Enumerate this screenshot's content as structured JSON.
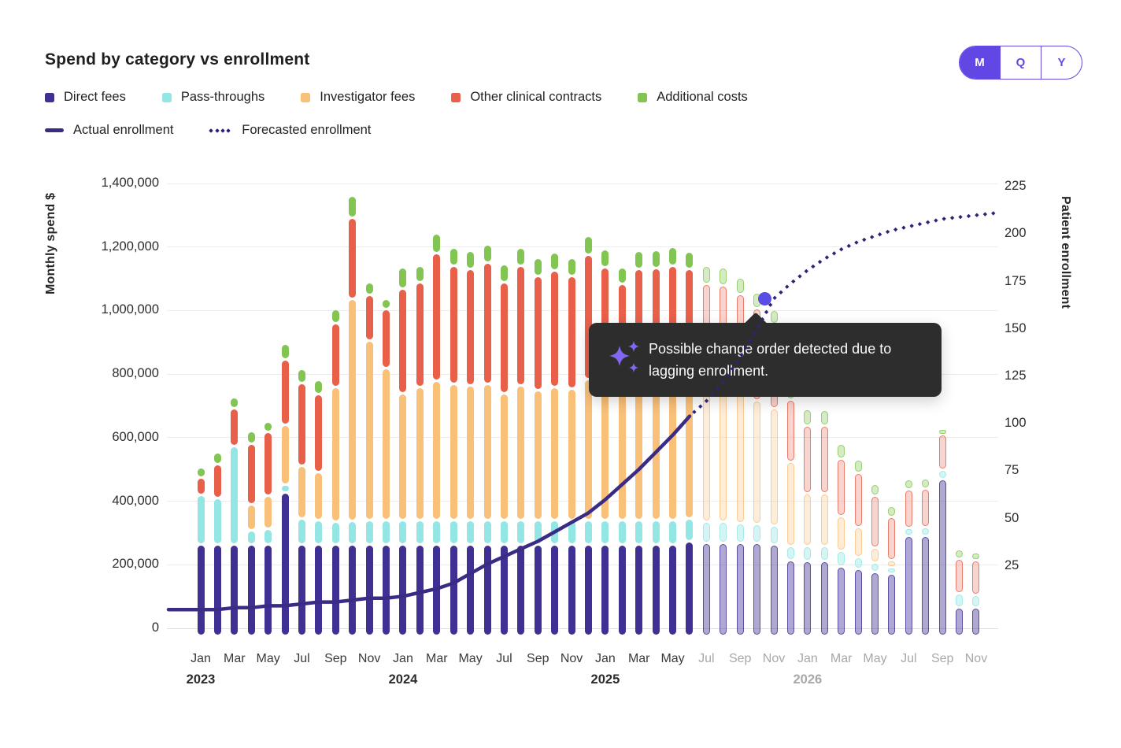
{
  "header": {
    "title": "Spend by category vs enrollment",
    "toggle": {
      "options": [
        "M",
        "Q",
        "Y"
      ],
      "selected": "M",
      "accent": "#6247e5"
    }
  },
  "legend": {
    "categories": [
      {
        "label": "Direct fees",
        "color": "#3f3093"
      },
      {
        "label": "Pass-throughs",
        "color": "#94e6e4"
      },
      {
        "label": "Investigator fees",
        "color": "#f9c07a"
      },
      {
        "label": "Other clinical contracts",
        "color": "#e8604a"
      },
      {
        "label": "Additional costs",
        "color": "#83c553"
      }
    ],
    "lines": [
      {
        "label": "Actual enrollment",
        "style": "solid",
        "color": "#3a2c85"
      },
      {
        "label": "Forecasted enrollment",
        "style": "dotted",
        "color": "#2e2475"
      }
    ]
  },
  "axes": {
    "left": {
      "title": "Monthly spend $",
      "tick_values": [
        1400000,
        1200000,
        1000000,
        800000,
        600000,
        400000,
        200000,
        0
      ]
    },
    "right": {
      "title": "Patient enrollment",
      "tick_values": [
        225,
        200,
        175,
        150,
        125,
        100,
        75,
        50,
        25
      ]
    },
    "x": {
      "year_labels": [
        "2023",
        "2024",
        "2025",
        "2026"
      ]
    }
  },
  "tooltip": {
    "icon": "sparkles-icon",
    "text": "Possible change order detected due to lagging enrollment.",
    "bg": "#2d2d2d",
    "icon_color": "#8268f0"
  },
  "chart_data": {
    "type": "combo_stacked_bar_line",
    "title": "Spend by category vs enrollment",
    "x_months": [
      "Jan 2023",
      "Feb 2023",
      "Mar 2023",
      "Apr 2023",
      "May 2023",
      "Jun 2023",
      "Jul 2023",
      "Aug 2023",
      "Sep 2023",
      "Oct 2023",
      "Nov 2023",
      "Dec 2023",
      "Jan 2024",
      "Feb 2024",
      "Mar 2024",
      "Apr 2024",
      "May 2024",
      "Jun 2024",
      "Jul 2024",
      "Aug 2024",
      "Sep 2024",
      "Oct 2024",
      "Nov 2024",
      "Dec 2024",
      "Jan 2025",
      "Feb 2025",
      "Mar 2025",
      "Apr 2025",
      "May 2025",
      "Jun 2025",
      "Jul 2025",
      "Aug 2025",
      "Sep 2025",
      "Oct 2025",
      "Nov 2025",
      "Dec 2025",
      "Jan 2026",
      "Feb 2026",
      "Mar 2026",
      "Apr 2026",
      "May 2026",
      "Jun 2026",
      "Jul 2026",
      "Aug 2026",
      "Sep 2026",
      "Oct 2026",
      "Nov 2026"
    ],
    "forecast_start_month": "Jul 2025",
    "bar_unit": "USD",
    "y_left": {
      "label": "Monthly spend $",
      "min": 0,
      "max": 1400000,
      "tick_step": 200000,
      "grid": true
    },
    "y_right": {
      "label": "Patient enrollment",
      "min": 0,
      "max": 225,
      "tick_step": 25
    },
    "series": [
      {
        "name": "Direct fees",
        "color": "#3f3093",
        "values": [
          263000,
          263000,
          263000,
          263000,
          263000,
          428000,
          263000,
          263000,
          263000,
          263000,
          263000,
          263000,
          265000,
          265000,
          265000,
          265000,
          265000,
          265000,
          265000,
          265000,
          265000,
          265000,
          265000,
          265000,
          265000,
          265000,
          265000,
          265000,
          265000,
          275000,
          270000,
          270000,
          270000,
          268000,
          265000,
          214000,
          213000,
          213000,
          195000,
          186000,
          178000,
          173000,
          290000,
          290000,
          470000,
          65000,
          65000
        ]
      },
      {
        "name": "Pass-throughs",
        "color": "#94e6e4",
        "values": [
          156000,
          146000,
          310000,
          45000,
          50000,
          25000,
          82000,
          78000,
          72000,
          75000,
          77000,
          77000,
          75000,
          75000,
          75000,
          75000,
          75000,
          75000,
          75000,
          75000,
          75000,
          75000,
          75000,
          75000,
          75000,
          75000,
          75000,
          75000,
          75000,
          70000,
          65000,
          65000,
          62000,
          60000,
          58000,
          46000,
          45000,
          45000,
          48000,
          39000,
          30000,
          20000,
          25000,
          28000,
          30000,
          45000,
          40000
        ]
      },
      {
        "name": "Investigator fees",
        "color": "#f9c07a",
        "values": [
          0,
          0,
          0,
          82000,
          105000,
          188000,
          166000,
          150000,
          425000,
          700000,
          565000,
          478000,
          400000,
          420000,
          440000,
          430000,
          425000,
          430000,
          400000,
          425000,
          410000,
          420000,
          415000,
          445000,
          430000,
          405000,
          430000,
          428000,
          432000,
          425000,
          420000,
          420000,
          410000,
          390000,
          370000,
          263000,
          166000,
          166000,
          109000,
          93000,
          47000,
          22000,
          0,
          0,
          0,
          0,
          0
        ]
      },
      {
        "name": "Other clinical contracts",
        "color": "#e8604a",
        "values": [
          55000,
          107000,
          120000,
          190000,
          200000,
          205000,
          260000,
          245000,
          200000,
          255000,
          145000,
          187000,
          330000,
          330000,
          400000,
          370000,
          365000,
          380000,
          350000,
          375000,
          360000,
          365000,
          355000,
          390000,
          365000,
          340000,
          362000,
          365000,
          370000,
          360000,
          330000,
          325000,
          310000,
          290000,
          265000,
          196000,
          215000,
          213000,
          183000,
          172000,
          162000,
          135000,
          122000,
          122000,
          110000,
          110000,
          110000
        ]
      },
      {
        "name": "Additional costs",
        "color": "#83c553",
        "values": [
          32000,
          37000,
          35000,
          40000,
          32000,
          50000,
          45000,
          47000,
          45000,
          68000,
          40000,
          33000,
          65000,
          52000,
          62000,
          59000,
          57000,
          59000,
          55000,
          59000,
          57000,
          59000,
          55000,
          60000,
          57000,
          52000,
          57000,
          57000,
          58000,
          55000,
          55000,
          55000,
          51000,
          49000,
          45000,
          41000,
          50000,
          50000,
          45000,
          42000,
          38000,
          35000,
          33000,
          32000,
          18000,
          30000,
          25000
        ]
      }
    ],
    "line_series": [
      {
        "name": "Actual enrollment",
        "color": "#3a2c85",
        "style": "solid",
        "values": [
          2,
          2,
          3,
          3,
          4,
          4,
          5,
          6,
          6,
          7,
          8,
          8,
          9,
          11,
          13,
          16,
          21,
          26,
          30,
          34,
          38,
          43,
          48,
          53,
          60,
          68,
          76,
          85,
          94,
          104,
          null,
          null,
          null,
          null,
          null,
          null,
          null,
          null,
          null,
          null,
          null,
          null,
          null,
          null,
          null,
          null,
          null
        ]
      },
      {
        "name": "Forecasted enrollment",
        "color": "#2e2475",
        "style": "dotted",
        "values": [
          null,
          null,
          null,
          null,
          null,
          null,
          null,
          null,
          null,
          null,
          null,
          null,
          null,
          null,
          null,
          null,
          null,
          null,
          null,
          null,
          null,
          null,
          null,
          null,
          null,
          null,
          null,
          null,
          null,
          104,
          112,
          122,
          135,
          150,
          166,
          174,
          181,
          187,
          192,
          196,
          199,
          202,
          204,
          206,
          208,
          209,
          210
        ]
      }
    ],
    "highlight": {
      "month": "Nov 2025",
      "enrollment": 166,
      "dot_color": "#5b4ce6"
    },
    "annotation": "Possible change order detected due to lagging enrollment.",
    "legend_position": "top"
  }
}
